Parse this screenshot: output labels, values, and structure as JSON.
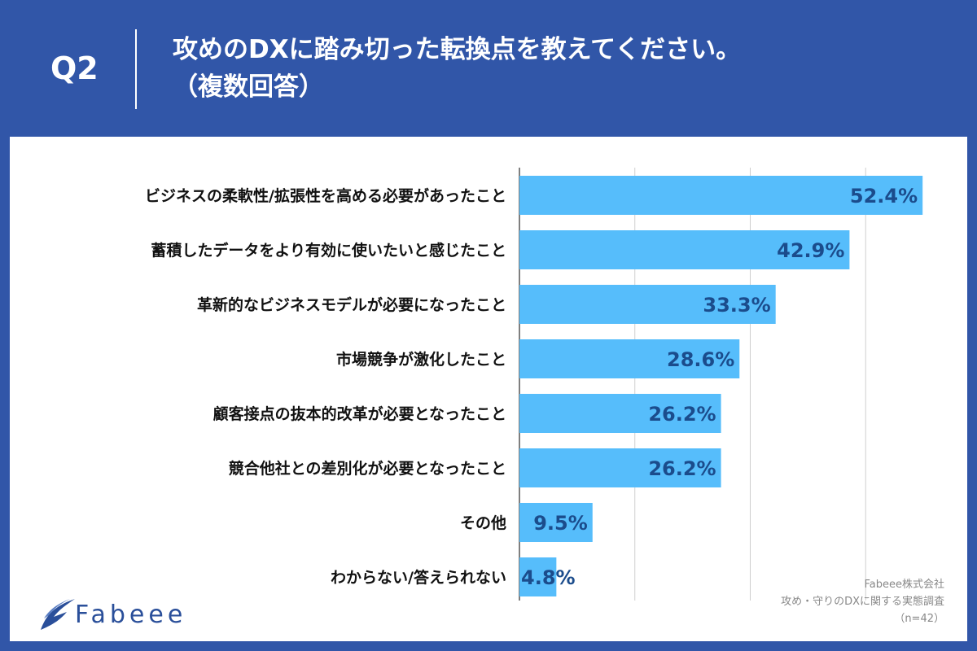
{
  "header": {
    "question_label": "Q2",
    "title_line1": "攻めのDXに踏み切った転換点を教えてください。",
    "title_line2": "（複数回答）"
  },
  "chart_data": {
    "type": "bar",
    "orientation": "horizontal",
    "categories": [
      "ビジネスの柔軟性/拡張性を高める必要があったこと",
      "蓄積したデータをより有効に使いたいと感じたこと",
      "革新的なビジネスモデルが必要になったこと",
      "市場競争が激化したこと",
      "顧客接点の抜本的改革が必要となったこと",
      "競合他社との差別化が必要となったこと",
      "その他",
      "わからない/答えられない"
    ],
    "values": [
      52.4,
      42.9,
      33.3,
      28.6,
      26.2,
      26.2,
      9.5,
      4.8
    ],
    "value_labels": [
      "52.4%",
      "42.9%",
      "33.3%",
      "28.6%",
      "26.2%",
      "26.2%",
      "9.5%",
      "4.8%"
    ],
    "xlim": [
      0,
      60
    ],
    "grid": true,
    "bar_color": "#56bdfb",
    "label_color": "#1b4c8c"
  },
  "footer": {
    "logo_text": "Fabeee",
    "source_line1": "Fabeee株式会社",
    "source_line2": "攻め・守りのDXに関する実態調査",
    "source_line3": "（n=42）"
  },
  "colors": {
    "background": "#3156a8",
    "card": "#ffffff",
    "logo": "#2a4f9a"
  }
}
